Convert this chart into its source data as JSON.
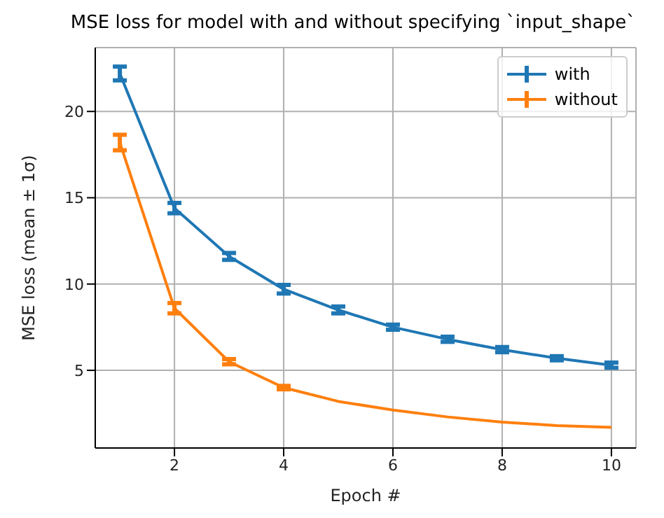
{
  "chart_data": {
    "type": "line",
    "title": "MSE loss for model with and without specifying `input_shape`",
    "xlabel": "Epoch #",
    "ylabel": "MSE loss (mean ± 1σ)",
    "x": [
      1,
      2,
      3,
      4,
      5,
      6,
      7,
      8,
      9,
      10
    ],
    "series": [
      {
        "name": "with",
        "color": "#1f77b4",
        "values": [
          22.2,
          14.4,
          11.6,
          9.7,
          8.5,
          7.5,
          6.8,
          6.2,
          5.7,
          5.3
        ],
        "errors": [
          0.4,
          0.3,
          0.2,
          0.25,
          0.2,
          0.15,
          0.15,
          0.15,
          0.12,
          0.15
        ]
      },
      {
        "name": "without",
        "color": "#ff7f0e",
        "values": [
          18.2,
          8.6,
          5.5,
          4.0,
          3.2,
          2.7,
          2.3,
          2.0,
          1.8,
          1.7
        ],
        "errors": [
          0.45,
          0.3,
          0.15,
          0.1,
          null,
          null,
          null,
          null,
          null,
          null
        ]
      }
    ],
    "xlim": [
      0.55,
      10.45
    ],
    "ylim": [
      0.5,
      23.7
    ],
    "xticks": [
      2,
      4,
      6,
      8,
      10
    ],
    "yticks": [
      5,
      10,
      15,
      20
    ],
    "grid": true,
    "legend": "top right",
    "marker": "none",
    "line_style": "solid"
  }
}
